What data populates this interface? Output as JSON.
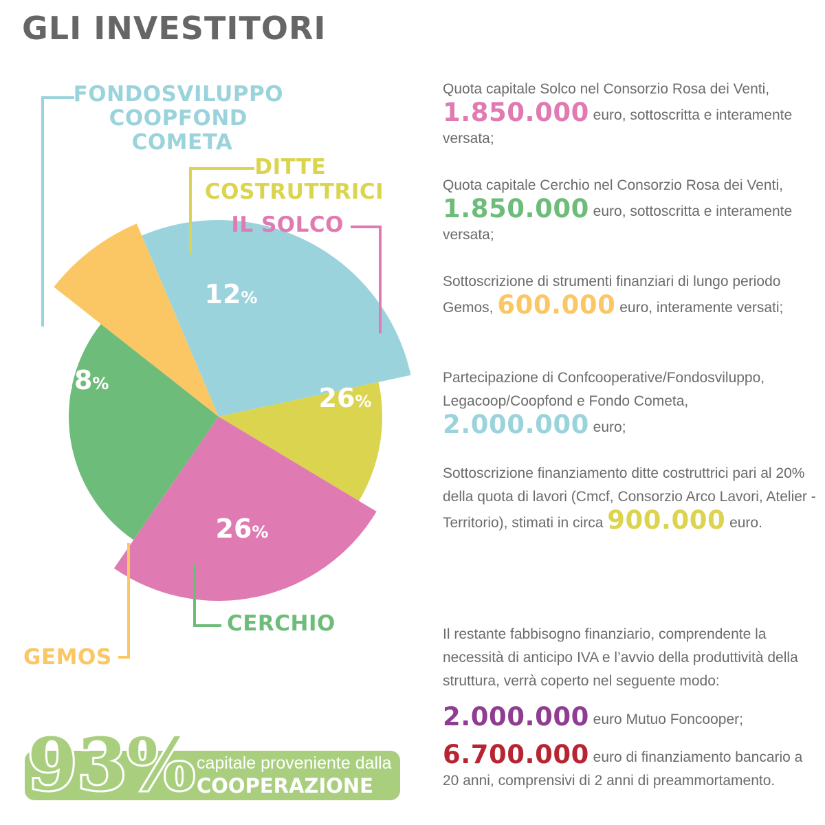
{
  "title": "GLI INVESTITORI",
  "colors": {
    "fondo": "#9bd3dc",
    "ditte": "#dbd44e",
    "solco": "#e07ab2",
    "cerchio": "#6ebc7a",
    "gemos": "#fac764",
    "purple": "#8f3c92",
    "red": "#b72533",
    "coop": "#a9cf7e",
    "text": "#6b6b6b",
    "title": "#666666"
  },
  "chart_data": {
    "type": "pie",
    "title": "GLI INVESTITORI",
    "slices": [
      {
        "label_lines": [
          "FONDOSVILUPPO",
          "COOPFOND",
          "COMETA"
        ],
        "value": 28,
        "value_label": "28",
        "color": "#9bd3dc"
      },
      {
        "label_lines": [
          "DITTE",
          "COSTRUTTRICI"
        ],
        "value": 12,
        "value_label": "12",
        "color": "#dbd44e"
      },
      {
        "label_lines": [
          "IL SOLCO"
        ],
        "value": 26,
        "value_label": "26",
        "color": "#e07ab2"
      },
      {
        "label_lines": [
          "CERCHIO"
        ],
        "value": 26,
        "value_label": "26",
        "color": "#6ebc7a"
      },
      {
        "label_lines": [
          "GEMOS"
        ],
        "value": 8,
        "value_label": "8",
        "color": "#fac764"
      }
    ],
    "percent_symbol": "%"
  },
  "paragraphs": [
    {
      "pre": "Quota capitale Solco nel Consorzio Rosa dei Venti, ",
      "amount": "1.850.000",
      "post": " euro, sottoscritta e interamente versata;"
    },
    {
      "pre": "Quota capitale Cerchio nel Consorzio Rosa dei Venti, ",
      "amount": "1.850.000",
      "post": " euro, sottoscritta e interamente versata;"
    },
    {
      "pre": "Sottoscrizione di strumenti finanziari di lungo periodo Gemos, ",
      "amount": "600.000",
      "post": " euro, interamente versati;"
    },
    {
      "pre": "Partecipazione di Confcooperative/Fondosviluppo, Legacoop/Coopfond e Fondo Cometa, ",
      "amount": "2.000.000",
      "post": " euro;"
    },
    {
      "pre": "Sottoscrizione finanziamento ditte costruttrici pari al 20% della quota di lavori (Cmcf, Consorzio Arco Lavori, Atelier -Territorio), stimati in circa ",
      "amount": "900.000",
      "post": " euro."
    }
  ],
  "remaining": {
    "intro": "Il restante fabbisogno finanziario, comprendente la necessità di anticipo IVA e l’avvio della produttività della struttura, verrà coperto nel seguente modo:",
    "amount1": "2.000.000",
    "post1": " euro Mutuo Foncooper;",
    "amount2": "6.700.000",
    "post2": " euro di finanziamento bancario a 20 anni, comprensivi di 2 anni di preammortamento."
  },
  "cooperation": {
    "percent": "93%",
    "line1": "capitale proveniente dalla",
    "line2": "COOPERAZIONE"
  }
}
